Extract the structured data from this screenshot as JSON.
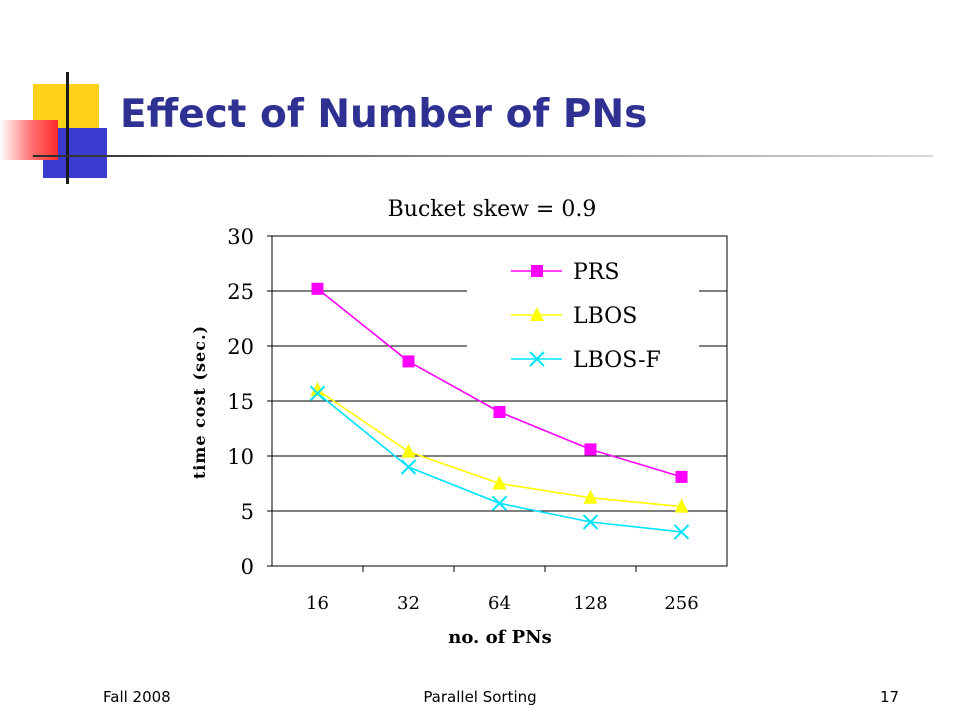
{
  "slide": {
    "title": "Effect of Number of PNs",
    "footer_left": "Fall 2008",
    "footer_center": "Parallel Sorting",
    "footer_right": "17"
  },
  "chart_data": {
    "type": "line",
    "title": "Bucket skew = 0.9",
    "xlabel": "no. of PNs",
    "ylabel": "time cost (sec.)",
    "categories": [
      "16",
      "32",
      "64",
      "128",
      "256"
    ],
    "yticks": [
      0,
      5,
      10,
      15,
      20,
      25,
      30
    ],
    "ylim": [
      0,
      30
    ],
    "grid": true,
    "legend_position": "top-right",
    "series": [
      {
        "name": "PRS",
        "values": [
          25.2,
          18.6,
          14.0,
          10.6,
          8.1
        ],
        "color": "#ff00ff",
        "marker": "square"
      },
      {
        "name": "LBOS",
        "values": [
          16.0,
          10.4,
          7.5,
          6.2,
          5.4
        ],
        "color": "#ffff00",
        "marker": "triangle"
      },
      {
        "name": "LBOS-F",
        "values": [
          15.7,
          9.0,
          5.7,
          4.0,
          3.1
        ],
        "color": "#00e5ff",
        "marker": "x"
      }
    ]
  }
}
